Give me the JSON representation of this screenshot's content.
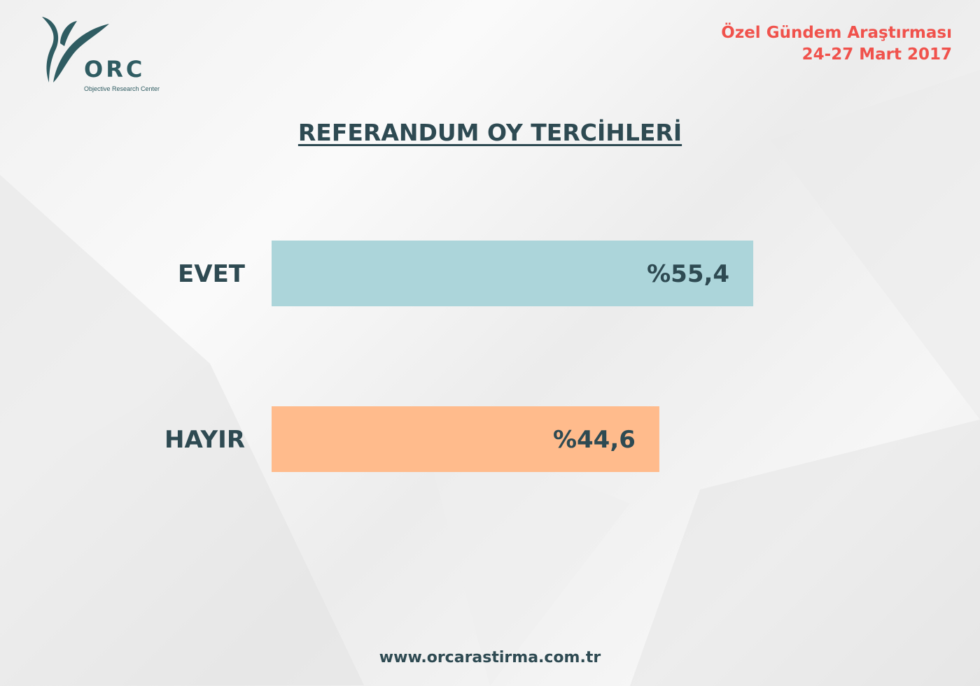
{
  "logo": {
    "text": "ORC",
    "subtitle": "Objective Research Center"
  },
  "header": {
    "line1": "Özel Gündem Araştırması",
    "line2": "24-27 Mart 2017"
  },
  "footer": {
    "url": "www.orcarastirma.com.tr"
  },
  "colors": {
    "text": "#2e4a52",
    "accent": "#f0524c",
    "evet": "#acd5da",
    "hayir": "#ffbb8c"
  },
  "chart_data": {
    "type": "bar",
    "orientation": "horizontal",
    "title": "REFERANDUM OY TERCİHLERİ",
    "categories": [
      "EVET",
      "HAYIR"
    ],
    "values": [
      55.4,
      44.6
    ],
    "data_labels": [
      "%55,4",
      "%44,6"
    ],
    "colors": [
      "#acd5da",
      "#ffbb8c"
    ],
    "xlim": [
      0,
      100
    ],
    "grid": false
  }
}
